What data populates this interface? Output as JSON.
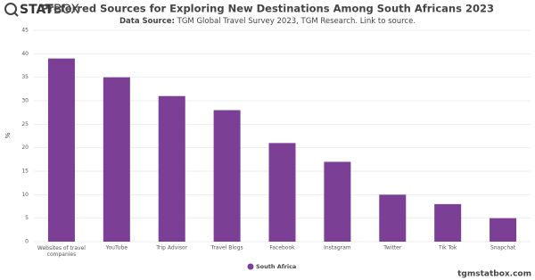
{
  "logo": {
    "bold": "STAT",
    "light": "BOX"
  },
  "footer": "tgmstatbox.com",
  "chart_data": {
    "type": "bar",
    "title": "Preferred Sources for Exploring New Destinations Among South Africans 2023",
    "subtitle_label": "Data Source:",
    "subtitle": "TGM Global Travel Survey 2023, TGM Research. Link to source.",
    "y_label": "%",
    "categories": [
      "Websites of travel companies",
      "YouTube",
      "Trip Advisor",
      "Travel Blogs",
      "Facebook",
      "Instagram",
      "Twitter",
      "Tik Tok",
      "Snapchat"
    ],
    "series": [
      {
        "name": "South Africa",
        "color": "#7b3f96",
        "values": [
          39,
          35,
          31,
          28,
          21,
          17,
          10,
          8,
          5
        ]
      }
    ],
    "ylim": [
      0,
      45
    ],
    "yticks": [
      0,
      5,
      10,
      15,
      20,
      25,
      30,
      35,
      40,
      45
    ],
    "grid": true
  }
}
